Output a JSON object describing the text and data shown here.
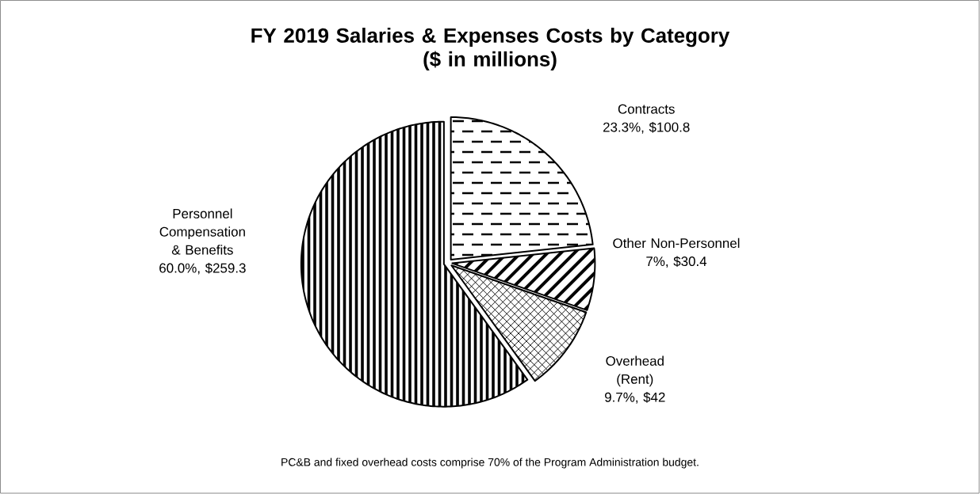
{
  "chart_data": {
    "type": "pie",
    "title": "FY 2019 Salaries & Expenses Costs by Category\n($ in millions)",
    "categories": [
      "Contracts",
      "Other Non-Personnel",
      "Overhead (Rent)",
      "Personnel Compensation & Benefits"
    ],
    "values": [
      100.8,
      30.4,
      42,
      259.3
    ],
    "value_labels": [
      "23.3%, $100.8",
      "7%, $30.4",
      "9.7%, $42",
      "60.0%, $259.3"
    ],
    "colors": [
      "#ffffff",
      "#ffffff",
      "#ffffff",
      "#ffffff"
    ],
    "annotations": [
      "PC&B and fixed overhead costs comprise 70% of the Program Administration budget."
    ]
  }
}
